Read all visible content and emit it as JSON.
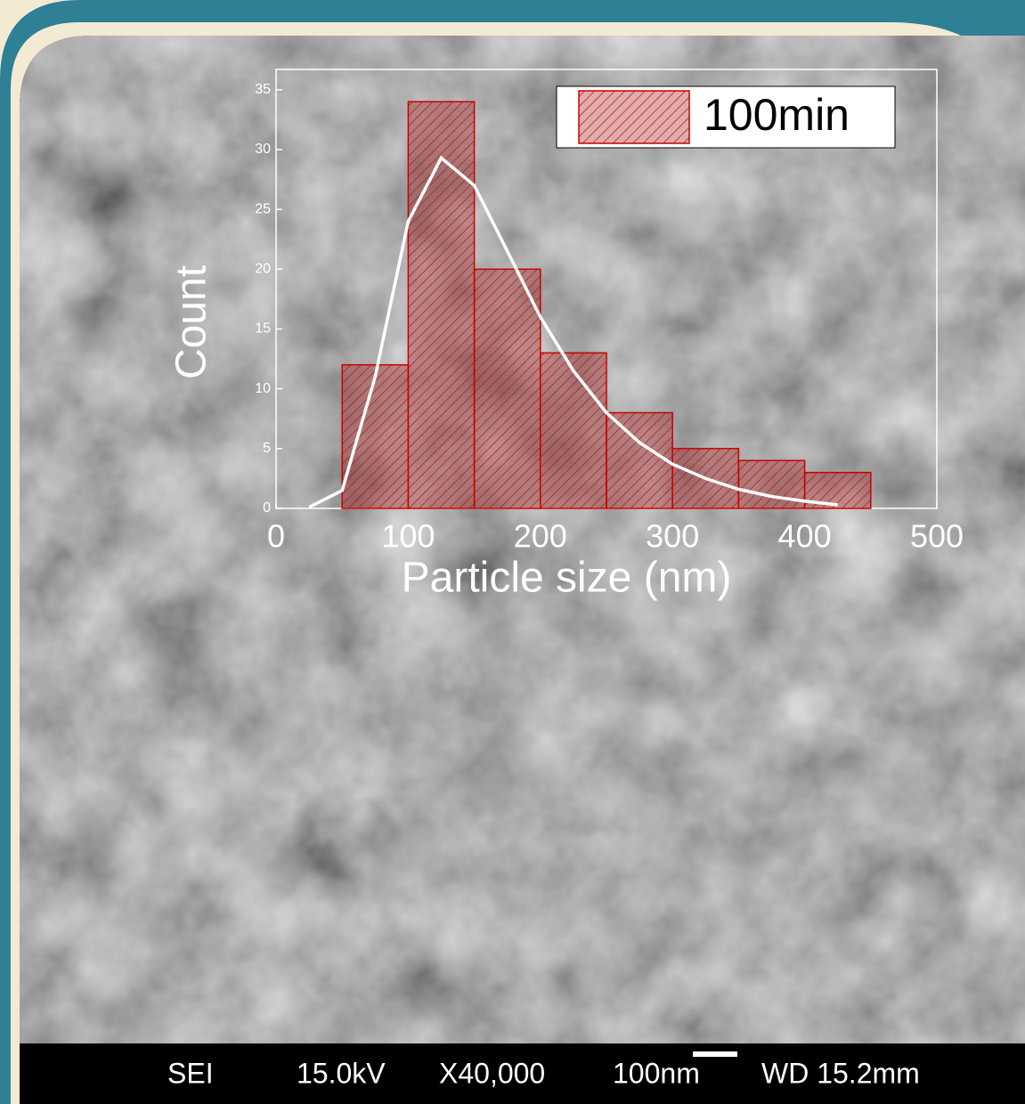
{
  "chart_data": {
    "type": "histogram",
    "xlabel": "Particle size (nm)",
    "ylabel": "Count",
    "bins": [
      50,
      100,
      150,
      200,
      250,
      300,
      350,
      400,
      450
    ],
    "series": [
      {
        "name": "100min",
        "color": "#cc0000",
        "values": [
          12,
          34,
          20,
          13,
          8,
          5,
          4,
          3
        ]
      }
    ],
    "fit": {
      "color": "#ffffff",
      "x": [
        25,
        50,
        75,
        100,
        125,
        150,
        175,
        200,
        225,
        250,
        275,
        300,
        325,
        350,
        375,
        400,
        425
      ],
      "values": [
        0.1,
        1.5,
        11,
        24,
        29.3,
        27,
        21.5,
        16,
        11.5,
        8,
        5.5,
        3.7,
        2.5,
        1.6,
        1,
        0.6,
        0.3
      ]
    },
    "xlim": [
      0,
      500
    ],
    "xticks": [
      0,
      100,
      200,
      300,
      400,
      500
    ],
    "ylim": [
      0,
      36.7
    ],
    "yticks": [
      0,
      5,
      10,
      15,
      20,
      25,
      30,
      35
    ],
    "legend": "upper right"
  },
  "image_info": {
    "mode": "SEI",
    "voltage": "15.0kV",
    "magnification": "X40,000",
    "scale": "100nm",
    "working_distance": "WD 15.2mm"
  }
}
